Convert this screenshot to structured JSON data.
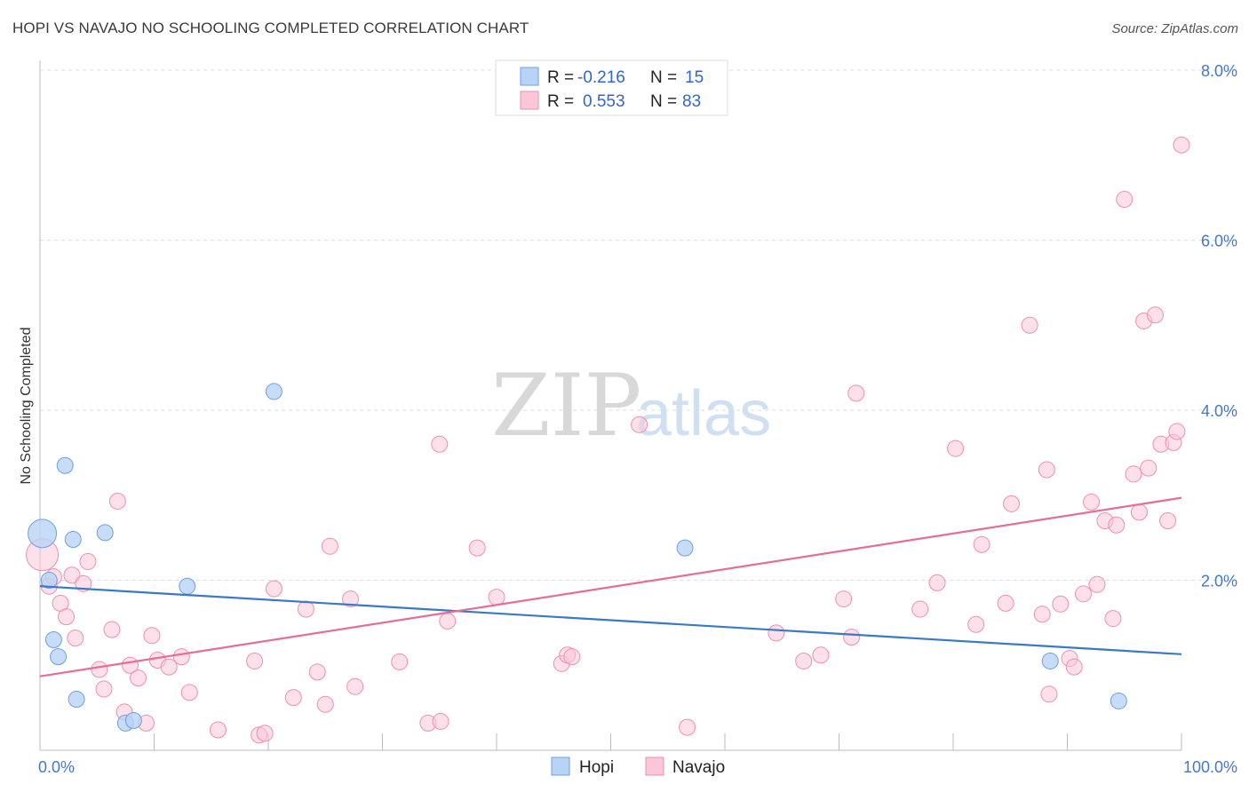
{
  "title": "HOPI VS NAVAJO NO SCHOOLING COMPLETED CORRELATION CHART",
  "source": "Source: ZipAtlas.com",
  "watermark": {
    "zip": "ZIP",
    "atlas": "atlas"
  },
  "chart_data": {
    "type": "scatter",
    "ylabel": "No Schooling Completed",
    "xlim": [
      0,
      100
    ],
    "ylim": [
      0,
      8.0
    ],
    "x_tick_labels": [
      {
        "value": 0,
        "label": "0.0%"
      },
      {
        "value": 100,
        "label": "100.0%"
      }
    ],
    "y_tick_labels": [
      {
        "value": 2.0,
        "label": "2.0%"
      },
      {
        "value": 4.0,
        "label": "4.0%"
      },
      {
        "value": 6.0,
        "label": "6.0%"
      },
      {
        "value": 8.0,
        "label": "8.0%"
      }
    ],
    "colors": {
      "hopi_fill": "#b8d3f5",
      "hopi_stroke": "#6f9fe0",
      "hopi_line": "#3a78c9",
      "navajo_fill": "#fbc7d8",
      "navajo_stroke": "#ee8fae",
      "navajo_line": "#e46e96",
      "grid": "#dddddd",
      "axis": "#bbbbbb"
    },
    "legend": {
      "rows": [
        {
          "r_label": "R =",
          "r_value": "-0.216",
          "n_label": "N =",
          "n_value": "15"
        },
        {
          "r_label": "R =",
          "r_value": "0.553",
          "n_label": "N =",
          "n_value": "83"
        }
      ]
    },
    "series": [
      {
        "name": "Hopi",
        "trend": [
          [
            0,
            1.93
          ],
          [
            100,
            1.13
          ]
        ],
        "points": [
          [
            0.2,
            2.55,
            16
          ],
          [
            0.8,
            2.0,
            9
          ],
          [
            2.2,
            3.35,
            9
          ],
          [
            2.9,
            2.48,
            9
          ],
          [
            5.7,
            2.56,
            9
          ],
          [
            1.2,
            1.3,
            9
          ],
          [
            1.6,
            1.1,
            9
          ],
          [
            3.2,
            0.6,
            9
          ],
          [
            7.5,
            0.32,
            9
          ],
          [
            8.2,
            0.35,
            9
          ],
          [
            12.9,
            1.93,
            9
          ],
          [
            20.5,
            4.22,
            9
          ],
          [
            56.5,
            2.38,
            9
          ],
          [
            88.5,
            1.05,
            9
          ],
          [
            94.5,
            0.58,
            9
          ]
        ]
      },
      {
        "name": "Navajo",
        "trend": [
          [
            0,
            0.87
          ],
          [
            100,
            2.97
          ]
        ],
        "points": [
          [
            0.2,
            2.3,
            18
          ],
          [
            0.8,
            1.93,
            9
          ],
          [
            1.2,
            2.04,
            9
          ],
          [
            1.8,
            1.73,
            9
          ],
          [
            2.3,
            1.57,
            9
          ],
          [
            3.1,
            1.32,
            9
          ],
          [
            2.8,
            2.06,
            9
          ],
          [
            3.8,
            1.96,
            9
          ],
          [
            4.2,
            2.22,
            9
          ],
          [
            5.2,
            0.95,
            9
          ],
          [
            5.6,
            0.72,
            9
          ],
          [
            6.3,
            1.42,
            9
          ],
          [
            6.8,
            2.93,
            9
          ],
          [
            7.4,
            0.45,
            9
          ],
          [
            7.9,
            1.0,
            9
          ],
          [
            8.6,
            0.85,
            9
          ],
          [
            9.3,
            0.32,
            9
          ],
          [
            9.8,
            1.35,
            9
          ],
          [
            10.3,
            1.06,
            9
          ],
          [
            11.3,
            0.98,
            9
          ],
          [
            12.4,
            1.1,
            9
          ],
          [
            13.1,
            0.68,
            9
          ],
          [
            15.6,
            0.24,
            9
          ],
          [
            18.8,
            1.05,
            9
          ],
          [
            19.2,
            0.18,
            9
          ],
          [
            19.7,
            0.2,
            9
          ],
          [
            20.5,
            1.9,
            9
          ],
          [
            22.2,
            0.62,
            9
          ],
          [
            23.3,
            1.66,
            9
          ],
          [
            24.3,
            0.92,
            9
          ],
          [
            25.0,
            0.54,
            9
          ],
          [
            25.4,
            2.4,
            9
          ],
          [
            27.2,
            1.78,
            9
          ],
          [
            27.6,
            0.75,
            9
          ],
          [
            31.5,
            1.04,
            9
          ],
          [
            34.0,
            0.32,
            9
          ],
          [
            35.1,
            0.34,
            9
          ],
          [
            35.7,
            1.52,
            9
          ],
          [
            38.3,
            2.38,
            9
          ],
          [
            40.0,
            1.8,
            9
          ],
          [
            35.0,
            3.6,
            9
          ],
          [
            45.7,
            1.02,
            9
          ],
          [
            46.2,
            1.12,
            9
          ],
          [
            46.6,
            1.1,
            9
          ],
          [
            52.5,
            3.83,
            9
          ],
          [
            56.7,
            0.27,
            9
          ],
          [
            64.5,
            1.38,
            9
          ],
          [
            66.9,
            1.05,
            9
          ],
          [
            68.4,
            1.12,
            9
          ],
          [
            70.4,
            1.78,
            9
          ],
          [
            71.1,
            1.33,
            9
          ],
          [
            71.5,
            4.2,
            9
          ],
          [
            77.1,
            1.66,
            9
          ],
          [
            78.6,
            1.97,
            9
          ],
          [
            80.2,
            3.55,
            9
          ],
          [
            82.0,
            1.48,
            9
          ],
          [
            82.5,
            2.42,
            9
          ],
          [
            84.6,
            1.73,
            9
          ],
          [
            85.1,
            2.9,
            9
          ],
          [
            86.7,
            5.0,
            9
          ],
          [
            88.2,
            3.3,
            9
          ],
          [
            87.8,
            1.6,
            9
          ],
          [
            88.4,
            0.66,
            9
          ],
          [
            89.4,
            1.72,
            9
          ],
          [
            90.2,
            1.08,
            9
          ],
          [
            90.6,
            0.98,
            9
          ],
          [
            91.4,
            1.84,
            9
          ],
          [
            92.1,
            2.92,
            9
          ],
          [
            92.6,
            1.95,
            9
          ],
          [
            93.3,
            2.7,
            9
          ],
          [
            94.0,
            1.55,
            9
          ],
          [
            94.3,
            2.65,
            9
          ],
          [
            95.0,
            6.48,
            9
          ],
          [
            95.8,
            3.25,
            9
          ],
          [
            96.3,
            2.8,
            9
          ],
          [
            96.7,
            5.05,
            9
          ],
          [
            97.1,
            3.32,
            9
          ],
          [
            97.7,
            5.12,
            9
          ],
          [
            98.2,
            3.6,
            9
          ],
          [
            98.8,
            2.7,
            9
          ],
          [
            99.3,
            3.62,
            9
          ],
          [
            99.6,
            3.75,
            9
          ],
          [
            100.0,
            7.12,
            9
          ]
        ]
      }
    ]
  }
}
